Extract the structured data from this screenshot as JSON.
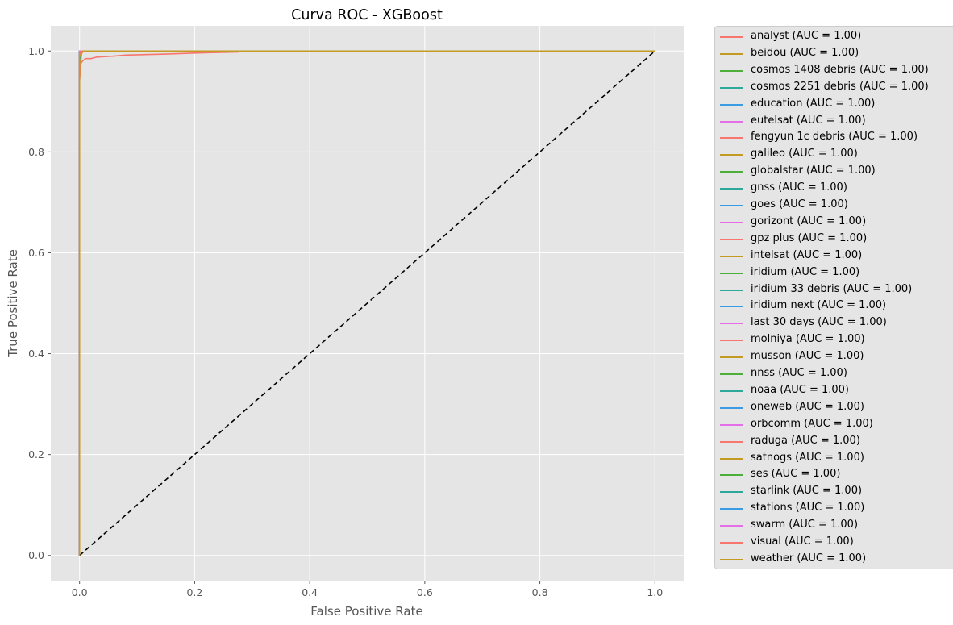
{
  "chart_data": {
    "type": "line",
    "title": "Curva ROC - XGBoost",
    "xlabel": "False Positive Rate",
    "ylabel": "True Positive Rate",
    "xlim": [
      -0.05,
      1.05
    ],
    "ylim": [
      -0.05,
      1.05
    ],
    "xticks": [
      "0.0",
      "0.2",
      "0.4",
      "0.6",
      "0.8",
      "1.0"
    ],
    "yticks": [
      "0.0",
      "0.2",
      "0.4",
      "0.6",
      "0.8",
      "1.0"
    ],
    "grid": true,
    "style": "ggplot",
    "legend_placement": "outside right",
    "palette": [
      "#f8766d",
      "#c49a22",
      "#4daf3a",
      "#2ea89a",
      "#3b9be3",
      "#e36ee8"
    ],
    "diagonal": {
      "x": [
        0,
        1
      ],
      "y": [
        0,
        1
      ],
      "color": "#000000",
      "dash": true
    },
    "series": [
      {
        "name": "analyst (AUC = 1.00)",
        "x": [
          0,
          0,
          0.003,
          1
        ],
        "y": [
          0,
          0.99,
          1,
          1
        ]
      },
      {
        "name": "beidou (AUC = 1.00)",
        "x": [
          0,
          0,
          0.004,
          1
        ],
        "y": [
          0,
          0.96,
          1,
          1
        ]
      },
      {
        "name": "cosmos 1408 debris (AUC = 1.00)",
        "x": [
          0,
          0,
          1
        ],
        "y": [
          0,
          1,
          1
        ]
      },
      {
        "name": "cosmos 2251 debris (AUC = 1.00)",
        "x": [
          0,
          0,
          0.003,
          1
        ],
        "y": [
          0,
          0.99,
          1,
          1
        ]
      },
      {
        "name": "education (AUC = 1.00)",
        "x": [
          0,
          0,
          1
        ],
        "y": [
          0,
          1,
          1
        ]
      },
      {
        "name": "eutelsat (AUC = 1.00)",
        "x": [
          0,
          0,
          1
        ],
        "y": [
          0,
          1,
          1
        ]
      },
      {
        "name": "fengyun 1c debris (AUC = 1.00)",
        "x": [
          0,
          0,
          0.002,
          0.005,
          0.01,
          0.02,
          0.03,
          0.06,
          0.08,
          0.15,
          0.2,
          0.276,
          0.276,
          1
        ],
        "y": [
          0,
          0.94,
          0.975,
          0.98,
          0.985,
          0.985,
          0.988,
          0.99,
          0.992,
          0.994,
          0.996,
          0.998,
          1,
          1
        ]
      },
      {
        "name": "galileo (AUC = 1.00)",
        "x": [
          0,
          0,
          1
        ],
        "y": [
          0,
          1,
          1
        ]
      },
      {
        "name": "globalstar (AUC = 1.00)",
        "x": [
          0,
          0,
          1
        ],
        "y": [
          0,
          1,
          1
        ]
      },
      {
        "name": "gnss (AUC = 1.00)",
        "x": [
          0,
          0,
          0.002,
          1
        ],
        "y": [
          0,
          0.995,
          1,
          1
        ]
      },
      {
        "name": "goes (AUC = 1.00)",
        "x": [
          0,
          0,
          1
        ],
        "y": [
          0,
          1,
          1
        ]
      },
      {
        "name": "gorizont (AUC = 1.00)",
        "x": [
          0,
          0,
          1
        ],
        "y": [
          0,
          1,
          1
        ]
      },
      {
        "name": "gpz plus (AUC = 1.00)",
        "x": [
          0,
          0,
          1
        ],
        "y": [
          0,
          1,
          1
        ]
      },
      {
        "name": "intelsat (AUC = 1.00)",
        "x": [
          0,
          0,
          1
        ],
        "y": [
          0,
          1,
          1
        ]
      },
      {
        "name": "iridium (AUC = 1.00)",
        "x": [
          0,
          0,
          1
        ],
        "y": [
          0,
          1,
          1
        ]
      },
      {
        "name": "iridium 33 debris (AUC = 1.00)",
        "x": [
          0,
          0,
          0.004,
          1
        ],
        "y": [
          0,
          0.98,
          1,
          1
        ]
      },
      {
        "name": "iridium next (AUC = 1.00)",
        "x": [
          0,
          0,
          1
        ],
        "y": [
          0,
          1,
          1
        ]
      },
      {
        "name": "last 30 days (AUC = 1.00)",
        "x": [
          0,
          0,
          1
        ],
        "y": [
          0,
          1,
          1
        ]
      },
      {
        "name": "molniya (AUC = 1.00)",
        "x": [
          0,
          0,
          1
        ],
        "y": [
          0,
          1,
          1
        ]
      },
      {
        "name": "musson (AUC = 1.00)",
        "x": [
          0,
          0,
          1
        ],
        "y": [
          0,
          1,
          1
        ]
      },
      {
        "name": "nnss (AUC = 1.00)",
        "x": [
          0,
          0,
          1
        ],
        "y": [
          0,
          1,
          1
        ]
      },
      {
        "name": "noaa (AUC = 1.00)",
        "x": [
          0,
          0,
          1
        ],
        "y": [
          0,
          1,
          1
        ]
      },
      {
        "name": "oneweb (AUC = 1.00)",
        "x": [
          0,
          0,
          1
        ],
        "y": [
          0,
          1,
          1
        ]
      },
      {
        "name": "orbcomm (AUC = 1.00)",
        "x": [
          0,
          0,
          1
        ],
        "y": [
          0,
          1,
          1
        ]
      },
      {
        "name": "raduga (AUC = 1.00)",
        "x": [
          0,
          0,
          1
        ],
        "y": [
          0,
          1,
          1
        ]
      },
      {
        "name": "satnogs (AUC = 1.00)",
        "x": [
          0,
          0,
          0.006,
          1
        ],
        "y": [
          0,
          0.995,
          1,
          1
        ]
      },
      {
        "name": "ses (AUC = 1.00)",
        "x": [
          0,
          0,
          1
        ],
        "y": [
          0,
          1,
          1
        ]
      },
      {
        "name": "starlink (AUC = 1.00)",
        "x": [
          0,
          0,
          0.002,
          1
        ],
        "y": [
          0,
          0.995,
          1,
          1
        ]
      },
      {
        "name": "stations (AUC = 1.00)",
        "x": [
          0,
          0,
          1
        ],
        "y": [
          0,
          1,
          1
        ]
      },
      {
        "name": "swarm (AUC = 1.00)",
        "x": [
          0,
          0,
          1
        ],
        "y": [
          0,
          1,
          1
        ]
      },
      {
        "name": "visual (AUC = 1.00)",
        "x": [
          0,
          0,
          0.002,
          1
        ],
        "y": [
          0,
          0.99,
          1,
          1
        ]
      },
      {
        "name": "weather (AUC = 1.00)",
        "x": [
          0,
          0,
          0.007,
          1
        ],
        "y": [
          0,
          0.99,
          1,
          1
        ]
      }
    ]
  }
}
